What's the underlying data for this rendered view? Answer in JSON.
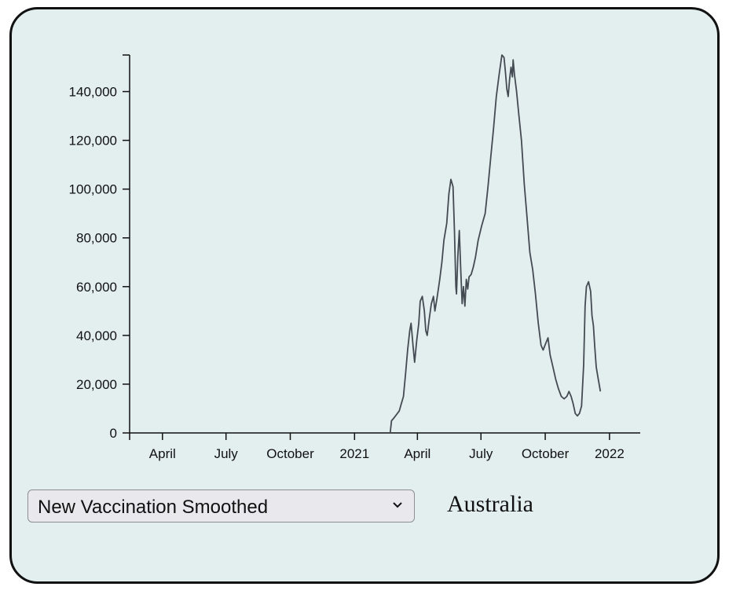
{
  "controls": {
    "metric_select": {
      "selected": "New Vaccination Smoothed"
    },
    "country_label": "Australia"
  },
  "colors": {
    "background": "#e3eeef",
    "line": "#444b52",
    "axis": "#111111"
  },
  "icons": {
    "select_arrow": "chevron-down-icon"
  },
  "chart_data": {
    "type": "line",
    "title": "",
    "xlabel": "",
    "ylabel": "",
    "x_axis": {
      "type": "date",
      "range": [
        "2020-02-14",
        "2022-02-14"
      ],
      "ticks": [
        {
          "date": "2020-04-01",
          "label": "April"
        },
        {
          "date": "2020-07-01",
          "label": "July"
        },
        {
          "date": "2020-10-01",
          "label": "October"
        },
        {
          "date": "2021-01-01",
          "label": "2021"
        },
        {
          "date": "2021-04-01",
          "label": "April"
        },
        {
          "date": "2021-07-01",
          "label": "July"
        },
        {
          "date": "2021-10-01",
          "label": "October"
        },
        {
          "date": "2022-01-01",
          "label": "2022"
        }
      ]
    },
    "y_axis": {
      "range": [
        0,
        155000
      ],
      "ticks": [
        {
          "value": 0,
          "label": "0"
        },
        {
          "value": 20000,
          "label": "20,000"
        },
        {
          "value": 40000,
          "label": "40,000"
        },
        {
          "value": 60000,
          "label": "60,000"
        },
        {
          "value": 80000,
          "label": "80,000"
        },
        {
          "value": 100000,
          "label": "100,000"
        },
        {
          "value": 120000,
          "label": "120,000"
        },
        {
          "value": 140000,
          "label": "140,000"
        }
      ]
    },
    "grid": false,
    "series": [
      {
        "points": [
          [
            "2021-02-21",
            0
          ],
          [
            "2021-02-23",
            5000
          ],
          [
            "2021-02-26",
            6000
          ],
          [
            "2021-03-02",
            7500
          ],
          [
            "2021-03-06",
            9000
          ],
          [
            "2021-03-09",
            12000
          ],
          [
            "2021-03-12",
            15000
          ],
          [
            "2021-03-15",
            24000
          ],
          [
            "2021-03-18",
            34000
          ],
          [
            "2021-03-21",
            42000
          ],
          [
            "2021-03-23",
            45000
          ],
          [
            "2021-03-26",
            35000
          ],
          [
            "2021-03-28",
            29000
          ],
          [
            "2021-03-31",
            38000
          ],
          [
            "2021-04-03",
            45000
          ],
          [
            "2021-04-05",
            54000
          ],
          [
            "2021-04-08",
            56000
          ],
          [
            "2021-04-11",
            50000
          ],
          [
            "2021-04-13",
            42000
          ],
          [
            "2021-04-15",
            40000
          ],
          [
            "2021-04-18",
            47000
          ],
          [
            "2021-04-21",
            53000
          ],
          [
            "2021-04-24",
            56000
          ],
          [
            "2021-04-26",
            50000
          ],
          [
            "2021-04-29",
            55000
          ],
          [
            "2021-05-03",
            63000
          ],
          [
            "2021-05-06",
            70000
          ],
          [
            "2021-05-09",
            79000
          ],
          [
            "2021-05-13",
            86000
          ],
          [
            "2021-05-16",
            98000
          ],
          [
            "2021-05-19",
            104000
          ],
          [
            "2021-05-22",
            101000
          ],
          [
            "2021-05-24",
            83000
          ],
          [
            "2021-05-26",
            60000
          ],
          [
            "2021-05-27",
            57000
          ],
          [
            "2021-05-29",
            73000
          ],
          [
            "2021-05-31",
            83000
          ],
          [
            "2021-06-02",
            67000
          ],
          [
            "2021-06-04",
            53000
          ],
          [
            "2021-06-06",
            60000
          ],
          [
            "2021-06-08",
            52000
          ],
          [
            "2021-06-10",
            63000
          ],
          [
            "2021-06-12",
            59000
          ],
          [
            "2021-06-14",
            64000
          ],
          [
            "2021-06-17",
            65000
          ],
          [
            "2021-06-20",
            68000
          ],
          [
            "2021-06-23",
            72000
          ],
          [
            "2021-06-27",
            79000
          ],
          [
            "2021-07-02",
            85000
          ],
          [
            "2021-07-07",
            90000
          ],
          [
            "2021-07-11",
            101000
          ],
          [
            "2021-07-15",
            113000
          ],
          [
            "2021-07-19",
            125000
          ],
          [
            "2021-07-23",
            138000
          ],
          [
            "2021-07-27",
            147000
          ],
          [
            "2021-07-31",
            155000
          ],
          [
            "2021-08-03",
            154000
          ],
          [
            "2021-08-05",
            148000
          ],
          [
            "2021-08-07",
            141000
          ],
          [
            "2021-08-09",
            138000
          ],
          [
            "2021-08-11",
            145000
          ],
          [
            "2021-08-13",
            150000
          ],
          [
            "2021-08-15",
            146000
          ],
          [
            "2021-08-16",
            153000
          ],
          [
            "2021-08-18",
            147000
          ],
          [
            "2021-08-21",
            140000
          ],
          [
            "2021-08-24",
            131000
          ],
          [
            "2021-08-28",
            120000
          ],
          [
            "2021-09-01",
            102000
          ],
          [
            "2021-09-05",
            88000
          ],
          [
            "2021-09-09",
            74000
          ],
          [
            "2021-09-13",
            67000
          ],
          [
            "2021-09-17",
            57000
          ],
          [
            "2021-09-21",
            45000
          ],
          [
            "2021-09-25",
            36000
          ],
          [
            "2021-09-28",
            34000
          ],
          [
            "2021-10-02",
            37000
          ],
          [
            "2021-10-05",
            39000
          ],
          [
            "2021-10-08",
            32000
          ],
          [
            "2021-10-12",
            27000
          ],
          [
            "2021-10-16",
            22000
          ],
          [
            "2021-10-20",
            18000
          ],
          [
            "2021-10-24",
            15000
          ],
          [
            "2021-10-28",
            14000
          ],
          [
            "2021-11-01",
            15000
          ],
          [
            "2021-11-04",
            17000
          ],
          [
            "2021-11-07",
            15000
          ],
          [
            "2021-11-10",
            12000
          ],
          [
            "2021-11-13",
            8000
          ],
          [
            "2021-11-16",
            7000
          ],
          [
            "2021-11-19",
            8000
          ],
          [
            "2021-11-22",
            11000
          ],
          [
            "2021-11-25",
            28000
          ],
          [
            "2021-11-27",
            52000
          ],
          [
            "2021-11-29",
            60000
          ],
          [
            "2021-12-02",
            62000
          ],
          [
            "2021-12-05",
            58000
          ],
          [
            "2021-12-07",
            48000
          ],
          [
            "2021-12-09",
            44000
          ],
          [
            "2021-12-11",
            35000
          ],
          [
            "2021-12-13",
            27000
          ],
          [
            "2021-12-16",
            22000
          ],
          [
            "2021-12-19",
            17000
          ]
        ]
      }
    ]
  }
}
